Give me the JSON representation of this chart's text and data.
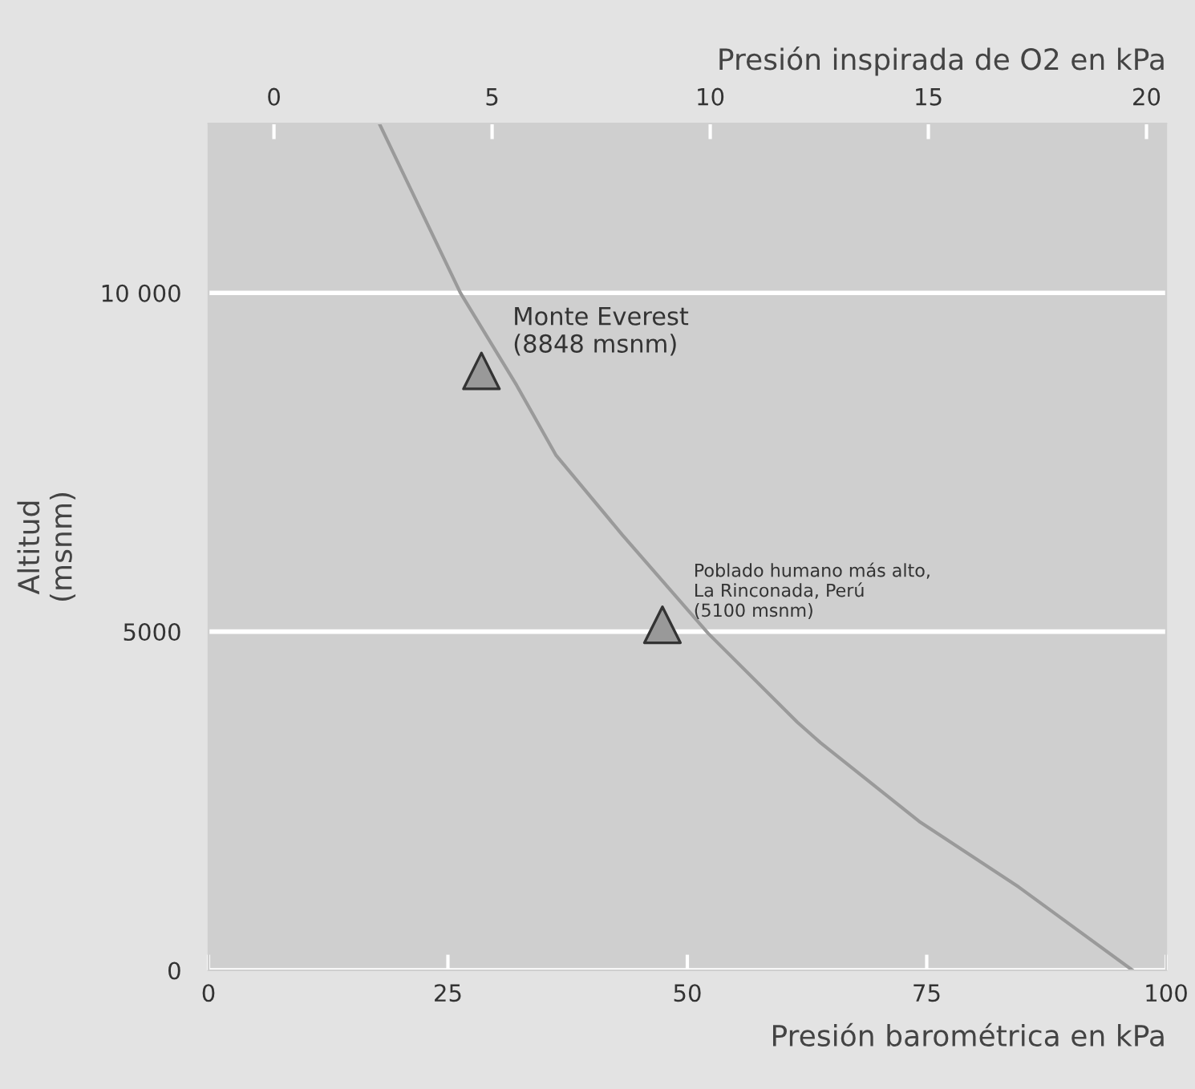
{
  "chart_data": {
    "type": "line",
    "xlabel": "Presión barométrica en kPa",
    "x2label": "Presión inspirada de O2 en kPa",
    "ylabel": "Altitud\n(msnm)",
    "xlim": [
      0,
      100
    ],
    "xticks": [
      0,
      25,
      50,
      75,
      100
    ],
    "x2lim": [
      -1.5,
      20.45
    ],
    "x2ticks": [
      0,
      5,
      10,
      15,
      20
    ],
    "ylim": [
      0,
      12500
    ],
    "yticks": [
      0,
      5000,
      {
        "value": 10000,
        "label": "10 000"
      }
    ],
    "grid": "y",
    "legend": false,
    "series": [
      {
        "color": "#9a9a9a",
        "marker": "none",
        "line_style": "solid",
        "x": [
          17.9,
          26.3,
          32.2,
          36.3,
          43.2,
          52.2,
          61.5,
          63.9,
          74.2,
          84.6,
          96.5
        ],
        "values": [
          12480,
          10000,
          8630,
          7600,
          6430,
          4970,
          3660,
          3360,
          2200,
          1230,
          0
        ]
      },
      {
        "type": "scatter",
        "color": "#999999",
        "marker": "triangle",
        "x": [
          28.5,
          47.4
        ],
        "values": [
          8848,
          5100
        ]
      }
    ],
    "annotations": [
      {
        "text": "Monte Everest\n(8848 msnm)",
        "x": 28.5,
        "y": 8848
      },
      {
        "text": "Poblado humano más alto,\nLa Rinconada, Perú\n(5100 msnm)",
        "x": 47.4,
        "y": 5100
      }
    ]
  }
}
